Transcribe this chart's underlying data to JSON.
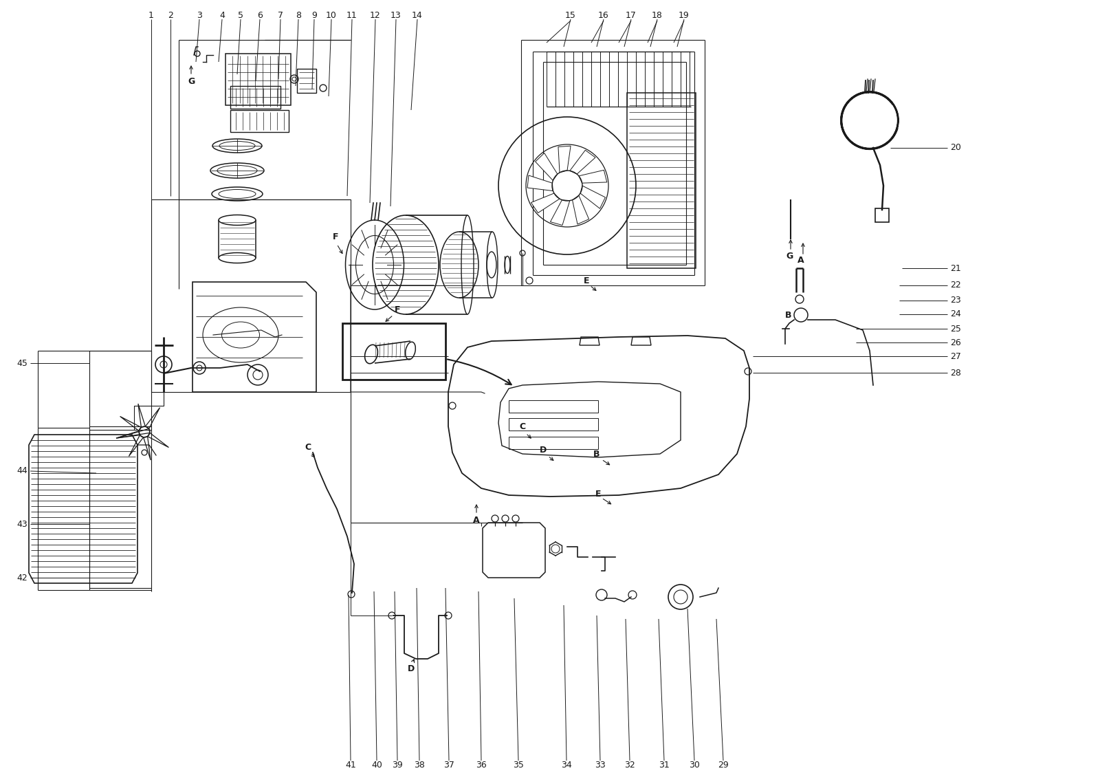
{
  "background_color": "#ffffff",
  "line_color": "#1a1a1a",
  "figsize": [
    16.0,
    11.4
  ],
  "dpi": 100,
  "top_numbers": [
    [
      "1",
      220,
      22
    ],
    [
      "2",
      248,
      22
    ],
    [
      "3",
      290,
      22
    ],
    [
      "4",
      323,
      22
    ],
    [
      "5",
      350,
      22
    ],
    [
      "6",
      378,
      22
    ],
    [
      "7",
      408,
      22
    ],
    [
      "8",
      434,
      22
    ],
    [
      "9",
      457,
      22
    ],
    [
      "10",
      482,
      22
    ],
    [
      "11",
      512,
      22
    ],
    [
      "12",
      546,
      22
    ],
    [
      "13",
      576,
      22
    ],
    [
      "14",
      607,
      22
    ],
    [
      "15",
      830,
      22
    ],
    [
      "16",
      878,
      22
    ],
    [
      "17",
      918,
      22
    ],
    [
      "18",
      956,
      22
    ],
    [
      "19",
      995,
      22
    ]
  ],
  "right_numbers": [
    [
      "20",
      1382,
      215
    ],
    [
      "21",
      1382,
      390
    ],
    [
      "22",
      1382,
      415
    ],
    [
      "23",
      1382,
      437
    ],
    [
      "24",
      1382,
      457
    ],
    [
      "25",
      1382,
      478
    ],
    [
      "26",
      1382,
      498
    ],
    [
      "27",
      1382,
      518
    ],
    [
      "28",
      1382,
      542
    ]
  ],
  "bottom_numbers": [
    [
      "29",
      1052,
      1112
    ],
    [
      "30",
      1010,
      1112
    ],
    [
      "31",
      966,
      1112
    ],
    [
      "32",
      916,
      1112
    ],
    [
      "33",
      873,
      1112
    ],
    [
      "34",
      824,
      1112
    ],
    [
      "35",
      754,
      1112
    ],
    [
      "36",
      700,
      1112
    ],
    [
      "37",
      653,
      1112
    ],
    [
      "38",
      610,
      1112
    ],
    [
      "39",
      578,
      1112
    ],
    [
      "40",
      548,
      1112
    ],
    [
      "41",
      510,
      1112
    ]
  ],
  "left_numbers": [
    [
      "42",
      40,
      840
    ],
    [
      "43",
      40,
      762
    ],
    [
      "44",
      40,
      685
    ],
    [
      "45",
      40,
      528
    ]
  ]
}
